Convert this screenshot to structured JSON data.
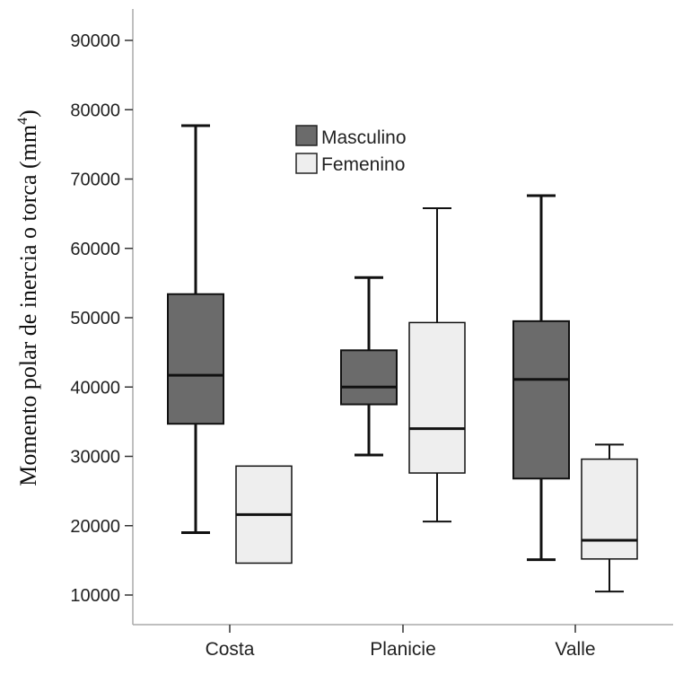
{
  "chart_data": {
    "type": "boxplot",
    "title": "",
    "xlabel": "",
    "ylabel": "Momento polar de inercia o torca (mm",
    "ylabel_superscript": "4",
    "ylabel_close": ")",
    "ylim": [
      5000,
      95000
    ],
    "yticks": [
      10000,
      20000,
      30000,
      40000,
      50000,
      60000,
      70000,
      80000,
      90000
    ],
    "ytick_labels": [
      "10000",
      "20000",
      "30000",
      "40000",
      "50000",
      "60000",
      "70000",
      "80000",
      "90000"
    ],
    "categories": [
      "Costa",
      "Planicie",
      "Valle"
    ],
    "legend_position": "top-center",
    "series": [
      {
        "name": "Masculino",
        "color": "#6b6b6b",
        "boxes": [
          {
            "category": "Costa",
            "min": 19000,
            "q1": 34700,
            "median": 41700,
            "q3": 53400,
            "max": 77700
          },
          {
            "category": "Planicie",
            "min": 30200,
            "q1": 37500,
            "median": 40000,
            "q3": 45300,
            "max": 55800
          },
          {
            "category": "Valle",
            "min": 15100,
            "q1": 26800,
            "median": 41100,
            "q3": 49500,
            "max": 67600
          }
        ]
      },
      {
        "name": "Femenino",
        "color": "#eeeeee",
        "boxes": [
          {
            "category": "Costa",
            "min": 14600,
            "q1": 14600,
            "median": 21600,
            "q3": 28600,
            "max": 28600
          },
          {
            "category": "Planicie",
            "min": 20600,
            "q1": 27600,
            "median": 34000,
            "q3": 49300,
            "max": 65800
          },
          {
            "category": "Valle",
            "min": 10500,
            "q1": 15200,
            "median": 17900,
            "q3": 29600,
            "max": 31700
          }
        ]
      }
    ]
  }
}
